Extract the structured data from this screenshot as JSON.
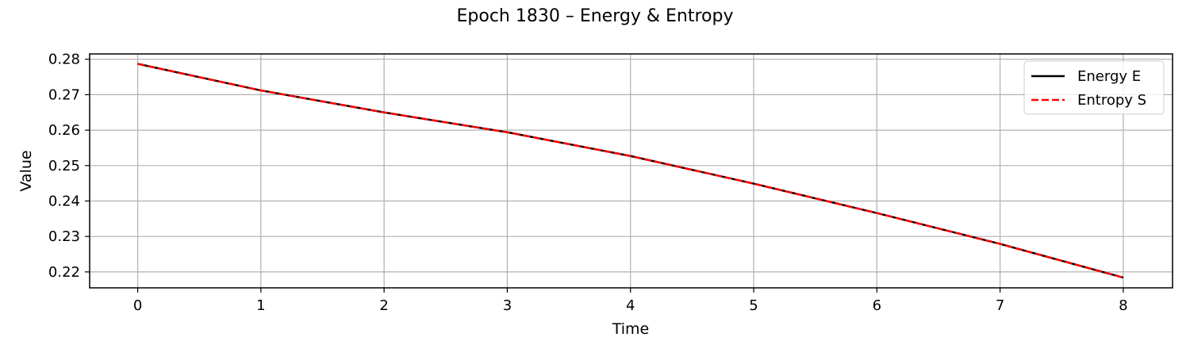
{
  "chart_data": {
    "type": "line",
    "title": "Epoch 1830 – Energy & Entropy",
    "xlabel": "Time",
    "ylabel": "Value",
    "xlim": [
      -0.39,
      8.4
    ],
    "ylim": [
      0.2155,
      0.2815
    ],
    "x_ticks": [
      0,
      1,
      2,
      3,
      4,
      5,
      6,
      7,
      8
    ],
    "y_ticks": [
      0.22,
      0.23,
      0.24,
      0.25,
      0.26,
      0.27,
      0.28
    ],
    "x_tick_labels": [
      "0",
      "1",
      "2",
      "3",
      "4",
      "5",
      "6",
      "7",
      "8"
    ],
    "y_tick_labels": [
      "0.22",
      "0.23",
      "0.24",
      "0.25",
      "0.26",
      "0.27",
      "0.28"
    ],
    "grid": true,
    "legend_position": "upper right",
    "x": [
      0,
      1,
      2,
      3,
      4,
      5,
      6,
      7,
      8
    ],
    "series": [
      {
        "name": "Energy E",
        "color": "#000000",
        "style": "solid",
        "values": [
          0.2787,
          0.2712,
          0.265,
          0.2594,
          0.2527,
          0.2449,
          0.2366,
          0.2279,
          0.2184
        ]
      },
      {
        "name": "Entropy S",
        "color": "#ff0000",
        "style": "dashed",
        "values": [
          0.2787,
          0.2712,
          0.265,
          0.2594,
          0.2527,
          0.2449,
          0.2366,
          0.2279,
          0.2184
        ]
      }
    ]
  }
}
